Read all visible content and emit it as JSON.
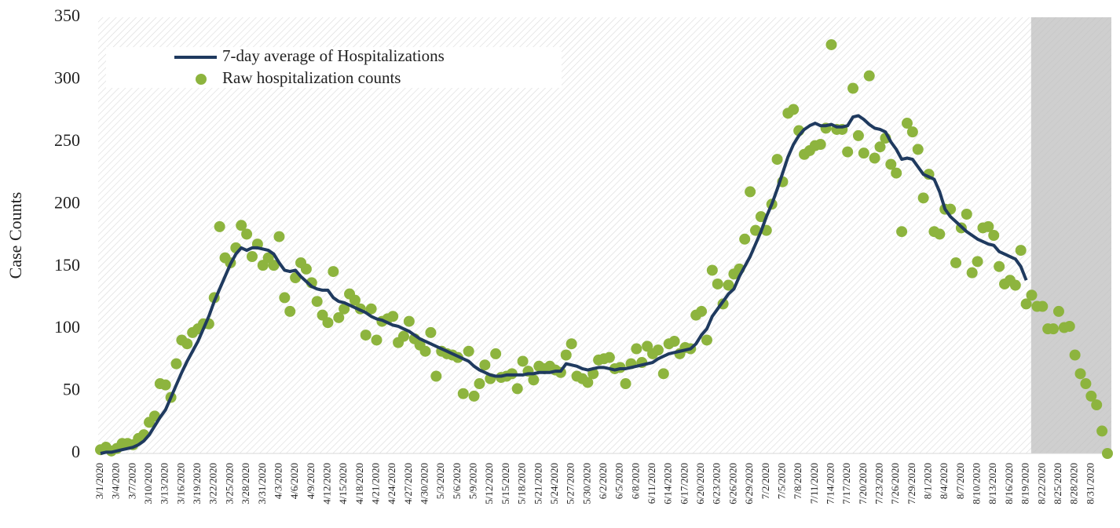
{
  "chart_data": {
    "type": "line",
    "ylabel": "Case Counts",
    "ylim": [
      0,
      350
    ],
    "yticks": [
      0,
      50,
      100,
      150,
      200,
      250,
      300,
      350
    ],
    "categories": [
      "3/1/2020",
      null,
      null,
      "3/4/2020",
      null,
      null,
      "3/7/2020",
      null,
      null,
      "3/10/2020",
      null,
      null,
      "3/13/2020",
      null,
      null,
      "3/16/2020",
      null,
      null,
      "3/19/2020",
      null,
      null,
      "3/22/2020",
      null,
      null,
      "3/25/2020",
      null,
      null,
      "3/28/2020",
      null,
      null,
      "3/31/2020",
      null,
      null,
      "4/3/2020",
      null,
      null,
      "4/6/2020",
      null,
      null,
      "4/9/2020",
      null,
      null,
      "4/12/2020",
      null,
      null,
      "4/15/2020",
      null,
      null,
      "4/18/2020",
      null,
      null,
      "4/21/2020",
      null,
      null,
      "4/24/2020",
      null,
      null,
      "4/27/2020",
      null,
      null,
      "4/30/2020",
      null,
      null,
      "5/3/2020",
      null,
      null,
      "5/6/2020",
      null,
      null,
      "5/9/2020",
      null,
      null,
      "5/12/2020",
      null,
      null,
      "5/15/2020",
      null,
      null,
      "5/18/2020",
      null,
      null,
      "5/21/2020",
      null,
      null,
      "5/24/2020",
      null,
      null,
      "5/27/2020",
      null,
      null,
      "5/30/2020",
      null,
      null,
      "6/2/2020",
      null,
      null,
      "6/5/2020",
      null,
      null,
      "6/8/2020",
      null,
      null,
      "6/11/2020",
      null,
      null,
      "6/14/2020",
      null,
      null,
      "6/17/2020",
      null,
      null,
      "6/20/2020",
      null,
      null,
      "6/23/2020",
      null,
      null,
      "6/26/2020",
      null,
      null,
      "6/29/2020",
      null,
      null,
      "7/2/2020",
      null,
      null,
      "7/5/2020",
      null,
      null,
      "7/8/2020",
      null,
      null,
      "7/11/2020",
      null,
      null,
      "7/14/2020",
      null,
      null,
      "7/17/2020",
      null,
      null,
      "7/20/2020",
      null,
      null,
      "7/23/2020",
      null,
      null,
      "7/26/2020",
      null,
      null,
      "7/29/2020",
      null,
      null,
      "8/1/2020",
      null,
      null,
      "8/4/2020",
      null,
      null,
      "8/7/2020",
      null,
      null,
      "8/10/2020",
      null,
      null,
      "8/13/2020",
      null,
      null,
      "8/16/2020",
      null,
      null,
      "8/19/2020",
      null,
      null,
      "8/22/2020",
      null,
      null,
      "8/25/2020",
      null,
      null,
      "8/28/2020",
      null,
      null,
      "8/31/2020",
      null,
      null,
      null
    ],
    "series": [
      {
        "name": "7-day average of Hospitalizations",
        "type": "line",
        "color": "#1f3a5f",
        "values": [
          0,
          1,
          1,
          2,
          3,
          4,
          5,
          7,
          10,
          15,
          22,
          29,
          35,
          45,
          55,
          65,
          74,
          82,
          90,
          100,
          110,
          122,
          132,
          142,
          152,
          160,
          165,
          163,
          165,
          165,
          164,
          163,
          160,
          153,
          147,
          146,
          147,
          142,
          138,
          134,
          132,
          131,
          131,
          125,
          122,
          121,
          119,
          117,
          115,
          113,
          110,
          108,
          107,
          105,
          103,
          102,
          100,
          98,
          95,
          92,
          90,
          88,
          86,
          84,
          82,
          80,
          78,
          76,
          74,
          70,
          67,
          65,
          63,
          62,
          62,
          63,
          63,
          63,
          63,
          64,
          64,
          65,
          65,
          65,
          66,
          66,
          72,
          71,
          70,
          68,
          67,
          68,
          69,
          69,
          68,
          67,
          68,
          68,
          69,
          70,
          71,
          72,
          73,
          76,
          78,
          80,
          81,
          82,
          83,
          84,
          88,
          95,
          100,
          110,
          116,
          122,
          128,
          132,
          142,
          150,
          158,
          168,
          178,
          190,
          200,
          212,
          225,
          238,
          248,
          255,
          260,
          263,
          265,
          263,
          263,
          264,
          262,
          262,
          263,
          270,
          271,
          268,
          264,
          261,
          260,
          258,
          250,
          244,
          236,
          237,
          236,
          230,
          224,
          222,
          220,
          210,
          196,
          190,
          186,
          182,
          178,
          175,
          172,
          170,
          168,
          167,
          162,
          160,
          158,
          156,
          150,
          139,
          null,
          null,
          null,
          null,
          null,
          null,
          null,
          null,
          null,
          null,
          null,
          null,
          null,
          null,
          null
        ]
      },
      {
        "name": "Raw hospitalization counts",
        "type": "scatter",
        "color": "#8db43e",
        "values": [
          3,
          5,
          2,
          4,
          8,
          8,
          7,
          12,
          15,
          25,
          30,
          56,
          55,
          45,
          72,
          91,
          88,
          97,
          100,
          104,
          104,
          125,
          182,
          157,
          153,
          165,
          183,
          176,
          158,
          168,
          151,
          157,
          151,
          174,
          125,
          114,
          141,
          153,
          148,
          137,
          122,
          111,
          105,
          146,
          109,
          116,
          128,
          123,
          116,
          95,
          116,
          91,
          106,
          108,
          110,
          89,
          94,
          106,
          92,
          87,
          82,
          97,
          62,
          82,
          80,
          79,
          77,
          48,
          82,
          46,
          56,
          71,
          60,
          80,
          61,
          62,
          64,
          52,
          74,
          66,
          59,
          70,
          68,
          70,
          67,
          65,
          79,
          88,
          62,
          60,
          57,
          64,
          75,
          76,
          77,
          68,
          69,
          56,
          72,
          84,
          73,
          86,
          80,
          83,
          64,
          88,
          90,
          80,
          85,
          84,
          111,
          114,
          91,
          147,
          136,
          120,
          135,
          144,
          148,
          172,
          210,
          179,
          190,
          179,
          200,
          236,
          218,
          273,
          276,
          259,
          240,
          243,
          247,
          248,
          261,
          328,
          260,
          260,
          242,
          293,
          255,
          241,
          303,
          237,
          246,
          253,
          232,
          225,
          178,
          265,
          258,
          244,
          205,
          224,
          178,
          176,
          196,
          196,
          153,
          181,
          192,
          145,
          154,
          181,
          182,
          175,
          150,
          136,
          139,
          135,
          163,
          120,
          127,
          118,
          118,
          100,
          100,
          114,
          101,
          102,
          79,
          64,
          56,
          46,
          39,
          18,
          0
        ]
      }
    ]
  }
}
